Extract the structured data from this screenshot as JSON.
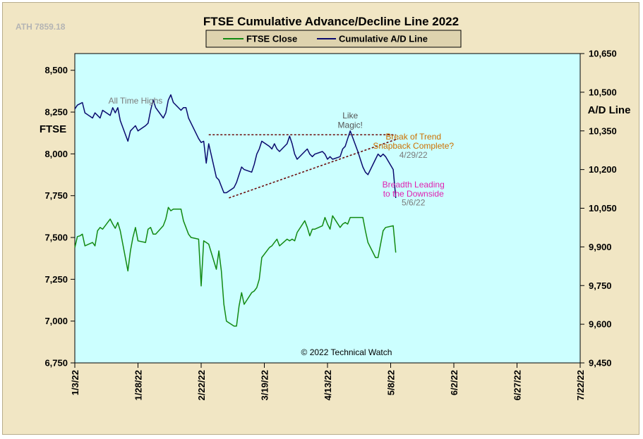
{
  "chart_data": {
    "type": "line",
    "title": "FTSE Cumulative  Advance/Decline Line 2022",
    "ath_label": "ATH 7859.18",
    "left_axis_label": "FTSE",
    "right_axis_label": "A/D Line",
    "copyright": "© 2022 Technical Watch",
    "legend_placement": "top-center",
    "grid": false,
    "x_ticks": [
      "1/3/22",
      "1/28/22",
      "2/22/22",
      "3/19/22",
      "4/13/22",
      "5/8/22",
      "6/2/22",
      "6/27/22",
      "7/22/22"
    ],
    "y_left": {
      "ticks": [
        "8,500",
        "8,250",
        "8,000",
        "7,750",
        "7,500",
        "7,250",
        "7,000",
        "6,750"
      ],
      "range": [
        6750,
        8600
      ]
    },
    "y_right": {
      "ticks": [
        "10,650",
        "10,500",
        "10,350",
        "10,200",
        "10,050",
        "9,900",
        "9,750",
        "9,600",
        "9,450"
      ],
      "range": [
        9450,
        10650
      ]
    },
    "x_range_days": [
      0,
      200
    ],
    "colors": {
      "ftse": "#128a12",
      "ad": "#0a0a6e",
      "plot_bg": "#ccffff",
      "trend": "#6b0a0a"
    },
    "series": [
      {
        "name": "FTSE Close",
        "axis": "left",
        "x": [
          0,
          1,
          2,
          3,
          4,
          7,
          8,
          9,
          10,
          11,
          14,
          15,
          16,
          17,
          18,
          21,
          22,
          23,
          24,
          25,
          28,
          29,
          30,
          31,
          32,
          35,
          36,
          37,
          38,
          39,
          42,
          43,
          44,
          45,
          46,
          49,
          50,
          51,
          52,
          53,
          56,
          57,
          58,
          59,
          60,
          63,
          64,
          65,
          66,
          67,
          70,
          71,
          72,
          73,
          74,
          77,
          78,
          79,
          80,
          81,
          84,
          85,
          86,
          87,
          88,
          91,
          92,
          93,
          94,
          95,
          98,
          99,
          100,
          101,
          102,
          105,
          106,
          107,
          108,
          109,
          112,
          113,
          114,
          115,
          116,
          119,
          120,
          121,
          122,
          123,
          126,
          127
        ],
        "values": [
          7440,
          7505,
          7510,
          7520,
          7450,
          7470,
          7450,
          7540,
          7560,
          7550,
          7610,
          7580,
          7555,
          7590,
          7540,
          7300,
          7420,
          7500,
          7560,
          7480,
          7470,
          7550,
          7560,
          7520,
          7520,
          7570,
          7610,
          7680,
          7660,
          7670,
          7670,
          7600,
          7560,
          7520,
          7500,
          7490,
          7210,
          7480,
          7470,
          7460,
          7310,
          7420,
          7300,
          7100,
          7000,
          6970,
          6970,
          7090,
          7170,
          7100,
          7170,
          7180,
          7200,
          7250,
          7380,
          7440,
          7450,
          7470,
          7490,
          7450,
          7490,
          7480,
          7490,
          7480,
          7530,
          7600,
          7560,
          7510,
          7550,
          7550,
          7570,
          7620,
          7580,
          7550,
          7630,
          7560,
          7580,
          7590,
          7580,
          7620,
          7620,
          7620,
          7620,
          7540,
          7470,
          7380,
          7380,
          7460,
          7540,
          7560,
          7570,
          7410
        ]
      },
      {
        "name": "Cumulative A/D Line",
        "axis": "right",
        "x": [
          0,
          1,
          2,
          3,
          4,
          7,
          8,
          9,
          10,
          11,
          14,
          15,
          16,
          17,
          18,
          21,
          22,
          23,
          24,
          25,
          28,
          29,
          30,
          31,
          32,
          35,
          36,
          37,
          38,
          39,
          42,
          43,
          44,
          45,
          46,
          49,
          50,
          51,
          52,
          53,
          56,
          57,
          58,
          59,
          60,
          63,
          64,
          65,
          66,
          67,
          70,
          71,
          72,
          73,
          74,
          77,
          78,
          79,
          80,
          81,
          84,
          85,
          86,
          87,
          88,
          91,
          92,
          93,
          94,
          95,
          98,
          99,
          100,
          101,
          102,
          105,
          106,
          107,
          108,
          109,
          112,
          113,
          114,
          115,
          116,
          119,
          120,
          121,
          122,
          123,
          126,
          127
        ],
        "values": [
          10435,
          10450,
          10455,
          10460,
          10420,
          10400,
          10420,
          10410,
          10400,
          10430,
          10410,
          10440,
          10420,
          10440,
          10390,
          10310,
          10350,
          10360,
          10370,
          10350,
          10370,
          10380,
          10430,
          10470,
          10440,
          10400,
          10420,
          10470,
          10490,
          10460,
          10430,
          10440,
          10440,
          10400,
          10380,
          10320,
          10305,
          10310,
          10225,
          10300,
          10170,
          10160,
          10135,
          10110,
          10110,
          10130,
          10150,
          10180,
          10210,
          10200,
          10190,
          10220,
          10260,
          10280,
          10310,
          10290,
          10280,
          10300,
          10280,
          10270,
          10300,
          10330,
          10300,
          10260,
          10240,
          10270,
          10280,
          10260,
          10250,
          10260,
          10270,
          10260,
          10240,
          10250,
          10240,
          10250,
          10280,
          10290,
          10320,
          10350,
          10270,
          10240,
          10210,
          10190,
          10180,
          10240,
          10260,
          10250,
          10260,
          10250,
          10200,
          10090
        ]
      }
    ],
    "annotations": [
      {
        "text": "All Time Highs",
        "x": 24,
        "y": 8300,
        "axis": "left",
        "color": "#7a7a7a"
      },
      {
        "text": "Like",
        "x": 109,
        "y": 10398,
        "axis": "right",
        "color": "#555555"
      },
      {
        "text": "Magic!",
        "x": 109,
        "y": 10362,
        "axis": "right",
        "color": "#555555"
      },
      {
        "text": "Break of Trend",
        "x": 134,
        "y": 10316,
        "axis": "right",
        "color": "#cc7000"
      },
      {
        "text": "Snapback Complete?",
        "x": 134,
        "y": 10281,
        "axis": "right",
        "color": "#cc7000"
      },
      {
        "text": "4/29/22",
        "x": 134,
        "y": 10245,
        "axis": "right",
        "color": "#7a7a7a"
      },
      {
        "text": "Breadth Leading",
        "x": 134,
        "y": 10130,
        "axis": "right",
        "color": "#e020b0"
      },
      {
        "text": "to the Downside",
        "x": 134,
        "y": 10095,
        "axis": "right",
        "color": "#e020b0"
      },
      {
        "text": "5/6/22",
        "x": 134,
        "y": 10061,
        "axis": "right",
        "color": "#7a7a7a"
      }
    ],
    "trendlines": [
      {
        "axis": "right",
        "x1": 53,
        "y1": 10335,
        "x2": 127,
        "y2": 10335
      },
      {
        "axis": "right",
        "x1": 61,
        "y1": 10090,
        "x2": 128,
        "y2": 10320
      }
    ]
  }
}
